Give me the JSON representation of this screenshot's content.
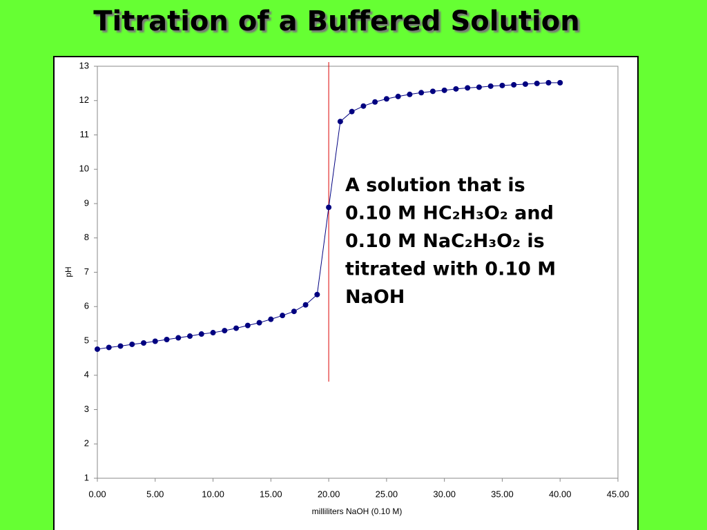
{
  "chart_data": {
    "type": "line",
    "title": "Titration of a Buffered Solution",
    "x_label": "milliliters NaOH (0.10 M)",
    "y_label": "pH",
    "annotation": [
      "A solution that is",
      "0.10 M HC₂H₃O₂ and",
      "0.10 M NaC₂H₃O₂ is",
      "titrated with 0.10 M",
      "NaOH"
    ],
    "vline": {
      "x": 20,
      "color": "#dd0000"
    },
    "x": [
      0,
      1,
      2,
      3,
      4,
      5,
      6,
      7,
      8,
      9,
      10,
      11,
      12,
      13,
      14,
      15,
      16,
      17,
      18,
      19,
      20,
      21,
      22,
      23,
      24,
      25,
      26,
      27,
      28,
      29,
      30,
      31,
      32,
      33,
      34,
      35,
      36,
      37,
      38,
      39,
      40
    ],
    "series": [
      {
        "color": "#000080",
        "values": [
          4.76,
          4.81,
          4.85,
          4.9,
          4.94,
          4.99,
          5.04,
          5.09,
          5.14,
          5.2,
          5.24,
          5.3,
          5.37,
          5.45,
          5.53,
          5.63,
          5.74,
          5.86,
          6.05,
          6.35,
          8.89,
          11.39,
          11.68,
          11.84,
          11.96,
          12.05,
          12.12,
          12.18,
          12.23,
          12.27,
          12.3,
          12.34,
          12.37,
          12.39,
          12.42,
          12.44,
          12.46,
          12.48,
          12.5,
          12.52,
          12.52
        ]
      }
    ],
    "xlim": [
      0,
      45
    ],
    "ylim": [
      1,
      13
    ],
    "xticks": [
      {
        "value": 0,
        "label": "0.00"
      },
      {
        "value": 5,
        "label": "5.00"
      },
      {
        "value": 10,
        "label": "10.00"
      },
      {
        "value": 15,
        "label": "15.00"
      },
      {
        "value": 20,
        "label": "20.00"
      },
      {
        "value": 25,
        "label": "25.00"
      },
      {
        "value": 30,
        "label": "30.00"
      },
      {
        "value": 35,
        "label": "35.00"
      },
      {
        "value": 40,
        "label": "40.00"
      },
      {
        "value": 45,
        "label": "45.00"
      }
    ],
    "yticks": [
      1,
      2,
      3,
      4,
      5,
      6,
      7,
      8,
      9,
      10,
      11,
      12,
      13
    ],
    "grid": false
  }
}
